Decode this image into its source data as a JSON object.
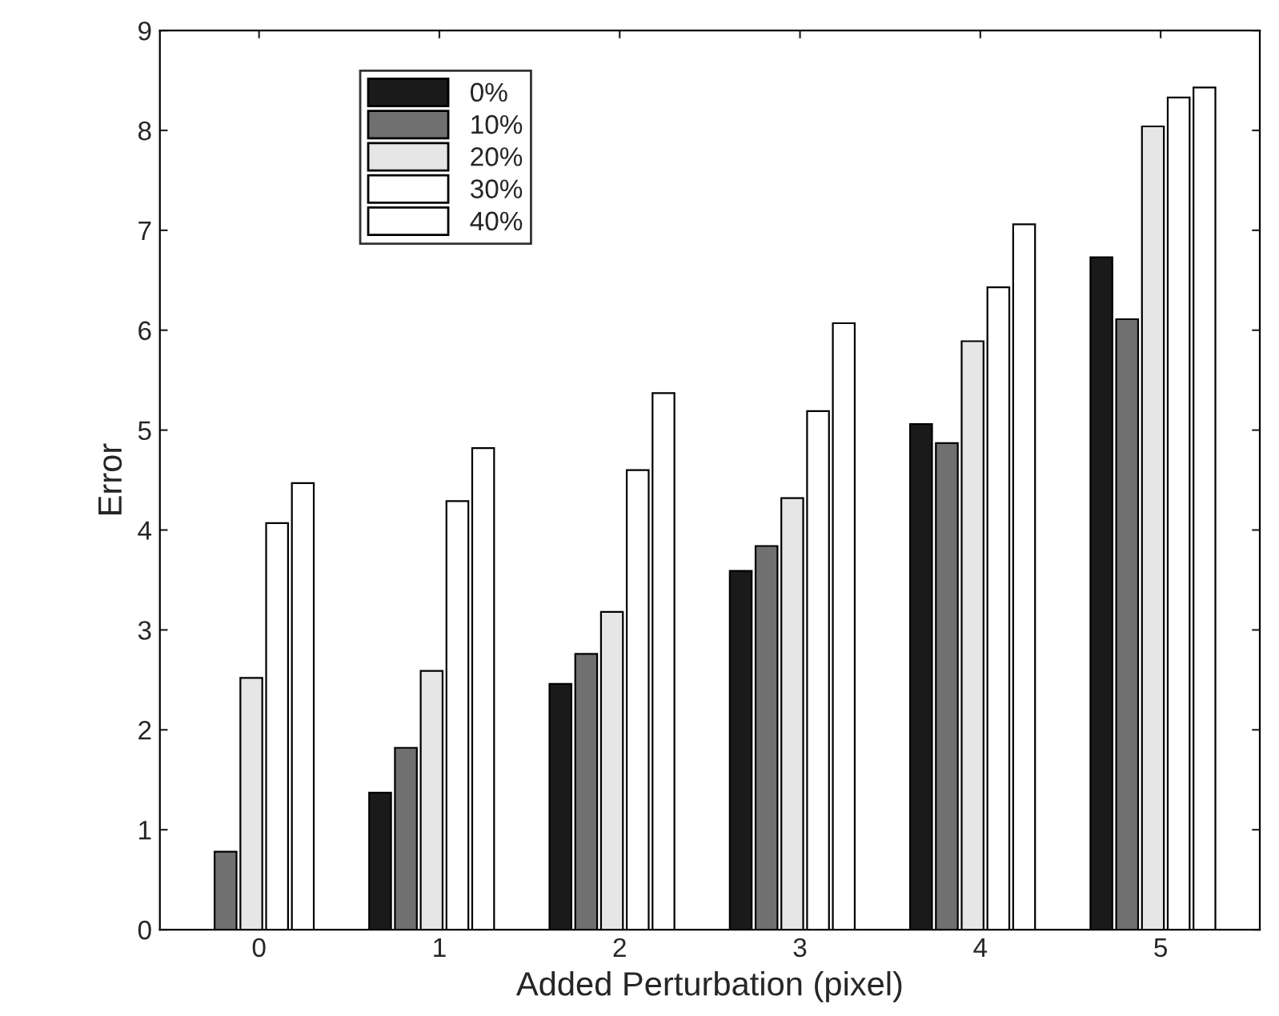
{
  "chart_data": {
    "type": "bar",
    "xlabel": "Added Perturbation (pixel)",
    "ylabel": "Error",
    "categories": [
      "0",
      "1",
      "2",
      "3",
      "4",
      "5"
    ],
    "series": [
      {
        "name": "0%",
        "color": "#1a1a1a",
        "values": [
          0,
          1.37,
          2.46,
          3.59,
          5.06,
          6.73
        ]
      },
      {
        "name": "10%",
        "color": "#707070",
        "values": [
          0.78,
          1.82,
          2.76,
          3.84,
          4.87,
          6.11
        ]
      },
      {
        "name": "20%",
        "color": "#e6e6e6",
        "values": [
          2.52,
          2.59,
          3.18,
          4.32,
          5.89,
          8.04
        ]
      },
      {
        "name": "30%",
        "color": "#ffffff",
        "values": [
          4.07,
          4.29,
          4.6,
          5.19,
          6.43,
          8.33
        ]
      },
      {
        "name": "40%",
        "color": "#ffffff",
        "values": [
          4.47,
          4.82,
          5.37,
          6.07,
          7.06,
          8.43
        ]
      }
    ],
    "ylim": [
      0,
      9
    ],
    "yticks": [
      0,
      1,
      2,
      3,
      4,
      5,
      6,
      7,
      8,
      9
    ],
    "grid": false,
    "legend": "top left"
  }
}
